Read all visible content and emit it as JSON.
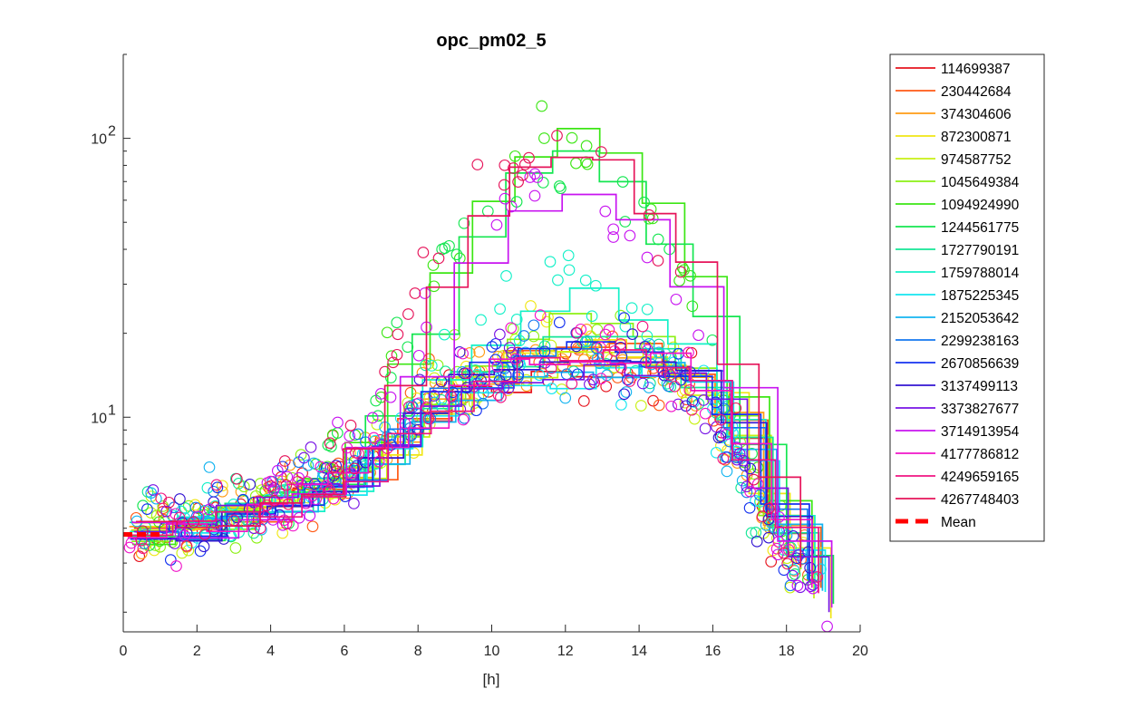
{
  "chart_data": {
    "type": "line",
    "title": "opc_pm02_5",
    "xlabel": "[h]",
    "ylabel": "",
    "xlim": [
      0,
      20
    ],
    "ylim": [
      1.7,
      200
    ],
    "yscale": "log",
    "x_ticks": [
      0,
      2,
      4,
      6,
      8,
      10,
      12,
      14,
      16,
      18,
      20
    ],
    "x_tick_labels": [
      "0",
      "2",
      "4",
      "6",
      "8",
      "10",
      "12",
      "14",
      "16",
      "18",
      "20"
    ],
    "y_major_ticks": [
      {
        "value": 10,
        "base": "10",
        "exp": "1"
      },
      {
        "value": 100,
        "base": "10",
        "exp": "2"
      }
    ],
    "grid": false,
    "legend_position": "outside-right",
    "series": [
      {
        "name": "114699387",
        "color": "#e6141e",
        "level": 0.84
      },
      {
        "name": "230442684",
        "color": "#ff5a14",
        "level": 1.02
      },
      {
        "name": "374304606",
        "color": "#ff9b14",
        "level": 0.95
      },
      {
        "name": "872300871",
        "color": "#f0e614",
        "level": 1.1
      },
      {
        "name": "974587752",
        "color": "#c8f014",
        "level": 0.9
      },
      {
        "name": "1045649384",
        "color": "#8cf014",
        "level": 1.25
      },
      {
        "name": "1094924990",
        "color": "#3ce614",
        "level": 5.8
      },
      {
        "name": "1244561775",
        "color": "#14e650",
        "level": 4.8
      },
      {
        "name": "1727790191",
        "color": "#14e696",
        "level": 1.05
      },
      {
        "name": "1759788014",
        "color": "#14f0c8",
        "level": 1.55
      },
      {
        "name": "1875225345",
        "color": "#14e6f0",
        "level": 0.8
      },
      {
        "name": "2152053642",
        "color": "#14b4f0",
        "level": 0.86
      },
      {
        "name": "2299238163",
        "color": "#1478f0",
        "level": 0.95
      },
      {
        "name": "2670856639",
        "color": "#1432f0",
        "level": 1.05
      },
      {
        "name": "3137499113",
        "color": "#3214d2",
        "level": 1.0
      },
      {
        "name": "3373827677",
        "color": "#7814e6",
        "level": 0.88
      },
      {
        "name": "3714913954",
        "color": "#c814f0",
        "level": 4.0
      },
      {
        "name": "4177786812",
        "color": "#f014c8",
        "level": 1.0
      },
      {
        "name": "4249659165",
        "color": "#f01482",
        "level": 0.93
      },
      {
        "name": "4267748403",
        "color": "#e6145a",
        "level": 5.4
      }
    ],
    "mean_series": {
      "name": "Mean",
      "color": "#ff0000",
      "x": [
        0.0,
        0.5,
        1.0
      ],
      "y": [
        3.8,
        3.8,
        3.8
      ]
    }
  }
}
